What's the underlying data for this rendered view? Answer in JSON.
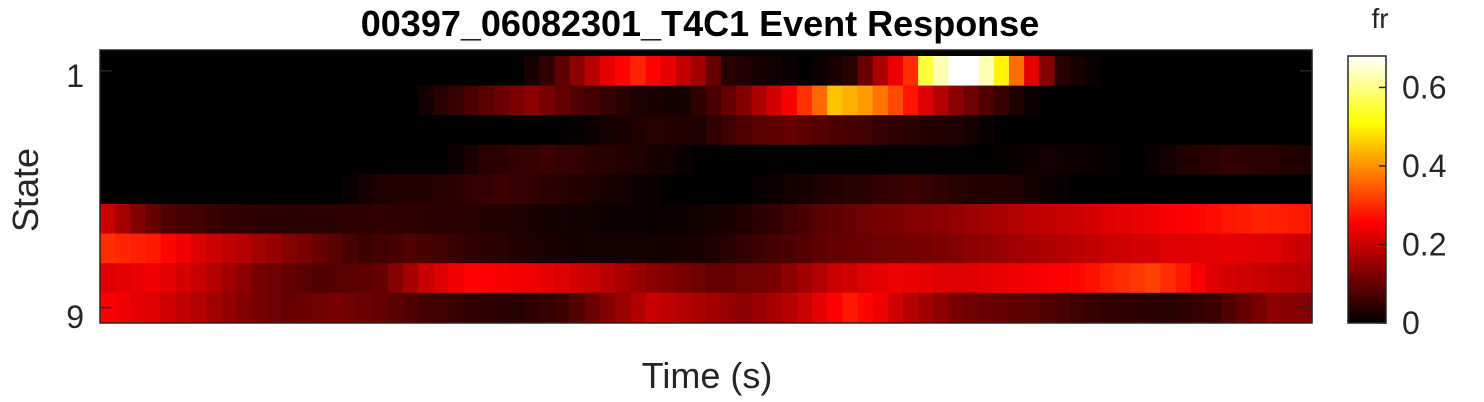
{
  "chart_data": {
    "type": "heatmap",
    "title": "00397_06082301_T4C1 Event Response",
    "xlabel": "Time (s)",
    "ylabel": "State",
    "y_tick_labels": [
      "1",
      "9"
    ],
    "y_categories": [
      1,
      2,
      3,
      4,
      5,
      6,
      7,
      8,
      9
    ],
    "n_time_bins": 80,
    "colormap": "hot",
    "colorbar": {
      "label": "fr",
      "range": [
        0,
        0.68
      ],
      "ticks": [
        0,
        0.2,
        0.4,
        0.6
      ],
      "tick_labels": [
        "0",
        "0.2",
        "0.4",
        "0.6"
      ]
    },
    "rows": [
      {
        "state": 1,
        "keypoints": [
          [
            0,
            0
          ],
          [
            27,
            0
          ],
          [
            29,
            0.05
          ],
          [
            31,
            0.14
          ],
          [
            33,
            0.23
          ],
          [
            35,
            0.29
          ],
          [
            37,
            0.23
          ],
          [
            39,
            0.16
          ],
          [
            41,
            0.04
          ],
          [
            46,
            0
          ],
          [
            49,
            0.04
          ],
          [
            51,
            0.17
          ],
          [
            53,
            0.3
          ],
          [
            54,
            0.55
          ],
          [
            55,
            0.63
          ],
          [
            56,
            0.68
          ],
          [
            57,
            0.68
          ],
          [
            58,
            0.63
          ],
          [
            59,
            0.5
          ],
          [
            61,
            0.23
          ],
          [
            63,
            0.04
          ],
          [
            66,
            0
          ],
          [
            79,
            0
          ]
        ]
      },
      {
        "state": 2,
        "keypoints": [
          [
            0,
            0
          ],
          [
            20,
            0
          ],
          [
            22,
            0.04
          ],
          [
            25,
            0.09
          ],
          [
            28,
            0.14
          ],
          [
            31,
            0.08
          ],
          [
            35,
            0.03
          ],
          [
            38,
            0.02
          ],
          [
            42,
            0.13
          ],
          [
            45,
            0.25
          ],
          [
            47,
            0.36
          ],
          [
            48,
            0.45
          ],
          [
            50,
            0.41
          ],
          [
            52,
            0.33
          ],
          [
            54,
            0.22
          ],
          [
            56,
            0.14
          ],
          [
            58,
            0.08
          ],
          [
            60,
            0.03
          ],
          [
            62,
            0
          ],
          [
            79,
            0
          ]
        ]
      },
      {
        "state": 3,
        "keypoints": [
          [
            0,
            0
          ],
          [
            30,
            0
          ],
          [
            33,
            0.02
          ],
          [
            36,
            0.04
          ],
          [
            39,
            0.03
          ],
          [
            42,
            0.08
          ],
          [
            45,
            0.1
          ],
          [
            49,
            0.07
          ],
          [
            53,
            0.04
          ],
          [
            56,
            0.03
          ],
          [
            59,
            0
          ],
          [
            79,
            0
          ]
        ]
      },
      {
        "state": 4,
        "keypoints": [
          [
            0,
            0
          ],
          [
            22,
            0
          ],
          [
            25,
            0.04
          ],
          [
            29,
            0.06
          ],
          [
            33,
            0.04
          ],
          [
            37,
            0.02
          ],
          [
            39,
            0
          ],
          [
            58,
            0
          ],
          [
            62,
            0.02
          ],
          [
            65,
            0.01
          ],
          [
            68,
            0
          ],
          [
            71,
            0.03
          ],
          [
            74,
            0.05
          ],
          [
            77,
            0.04
          ],
          [
            79,
            0.03
          ]
        ]
      },
      {
        "state": 5,
        "keypoints": [
          [
            0,
            0
          ],
          [
            15,
            0
          ],
          [
            18,
            0.03
          ],
          [
            22,
            0.04
          ],
          [
            26,
            0.06
          ],
          [
            30,
            0.04
          ],
          [
            34,
            0.02
          ],
          [
            38,
            0
          ],
          [
            42,
            0
          ],
          [
            45,
            0.02
          ],
          [
            49,
            0.04
          ],
          [
            53,
            0.06
          ],
          [
            56,
            0.04
          ],
          [
            60,
            0.03
          ],
          [
            64,
            0
          ],
          [
            79,
            0
          ]
        ]
      },
      {
        "state": 6,
        "keypoints": [
          [
            0,
            0.2
          ],
          [
            2,
            0.13
          ],
          [
            4,
            0.08
          ],
          [
            8,
            0.05
          ],
          [
            12,
            0.04
          ],
          [
            18,
            0.05
          ],
          [
            24,
            0.04
          ],
          [
            30,
            0.02
          ],
          [
            36,
            0.01
          ],
          [
            40,
            0.02
          ],
          [
            44,
            0.05
          ],
          [
            47,
            0.09
          ],
          [
            51,
            0.12
          ],
          [
            55,
            0.14
          ],
          [
            60,
            0.18
          ],
          [
            66,
            0.22
          ],
          [
            72,
            0.26
          ],
          [
            76,
            0.29
          ],
          [
            79,
            0.28
          ]
        ]
      },
      {
        "state": 7,
        "keypoints": [
          [
            0,
            0.3
          ],
          [
            3,
            0.28
          ],
          [
            6,
            0.22
          ],
          [
            9,
            0.18
          ],
          [
            13,
            0.12
          ],
          [
            17,
            0.06
          ],
          [
            20,
            0.08
          ],
          [
            24,
            0.05
          ],
          [
            28,
            0.03
          ],
          [
            32,
            0.02
          ],
          [
            36,
            0.02
          ],
          [
            40,
            0.03
          ],
          [
            44,
            0.07
          ],
          [
            48,
            0.1
          ],
          [
            54,
            0.12
          ],
          [
            60,
            0.16
          ],
          [
            66,
            0.2
          ],
          [
            70,
            0.22
          ],
          [
            74,
            0.23
          ],
          [
            77,
            0.22
          ],
          [
            79,
            0.2
          ]
        ]
      },
      {
        "state": 8,
        "keypoints": [
          [
            0,
            0.22
          ],
          [
            3,
            0.24
          ],
          [
            6,
            0.2
          ],
          [
            10,
            0.12
          ],
          [
            14,
            0.08
          ],
          [
            18,
            0.1
          ],
          [
            21,
            0.2
          ],
          [
            24,
            0.26
          ],
          [
            28,
            0.24
          ],
          [
            32,
            0.2
          ],
          [
            36,
            0.14
          ],
          [
            40,
            0.1
          ],
          [
            44,
            0.12
          ],
          [
            48,
            0.2
          ],
          [
            52,
            0.24
          ],
          [
            56,
            0.22
          ],
          [
            60,
            0.24
          ],
          [
            64,
            0.26
          ],
          [
            67,
            0.3
          ],
          [
            69,
            0.32
          ],
          [
            71,
            0.28
          ],
          [
            73,
            0.22
          ],
          [
            76,
            0.2
          ],
          [
            79,
            0.18
          ]
        ]
      },
      {
        "state": 9,
        "keypoints": [
          [
            0,
            0.25
          ],
          [
            3,
            0.22
          ],
          [
            6,
            0.18
          ],
          [
            9,
            0.13
          ],
          [
            12,
            0.1
          ],
          [
            15,
            0.12
          ],
          [
            18,
            0.1
          ],
          [
            21,
            0.07
          ],
          [
            24,
            0.05
          ],
          [
            27,
            0.04
          ],
          [
            30,
            0.06
          ],
          [
            33,
            0.13
          ],
          [
            36,
            0.2
          ],
          [
            39,
            0.17
          ],
          [
            42,
            0.14
          ],
          [
            45,
            0.18
          ],
          [
            47,
            0.23
          ],
          [
            49,
            0.28
          ],
          [
            51,
            0.24
          ],
          [
            53,
            0.18
          ],
          [
            56,
            0.12
          ],
          [
            59,
            0.1
          ],
          [
            62,
            0.08
          ],
          [
            66,
            0.05
          ],
          [
            70,
            0.04
          ],
          [
            73,
            0.06
          ],
          [
            75,
            0.1
          ],
          [
            77,
            0.14
          ],
          [
            79,
            0.13
          ]
        ]
      }
    ]
  }
}
